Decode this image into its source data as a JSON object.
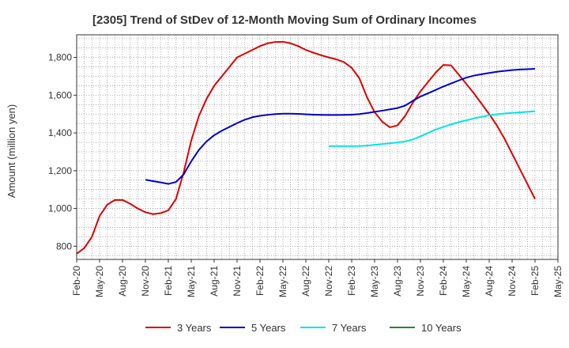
{
  "chart_data": {
    "type": "line",
    "title": "[2305]  Trend of StDev of 12-Month Moving Sum of Ordinary Incomes",
    "xlabel": "",
    "ylabel": "Amount (million yen)",
    "ylim": [
      730,
      1920
    ],
    "yticks": [
      800,
      1000,
      1200,
      1400,
      1600,
      1800
    ],
    "ytick_labels": [
      "800",
      "1,000",
      "1,200",
      "1,400",
      "1,600",
      "1,800"
    ],
    "xlim": [
      0,
      63
    ],
    "xtick_positions": [
      0,
      3,
      6,
      9,
      12,
      15,
      18,
      21,
      24,
      27,
      30,
      33,
      36,
      39,
      42,
      45,
      48,
      51,
      54,
      57,
      60,
      63
    ],
    "xtick_labels": [
      "Feb-20",
      "May-20",
      "Aug-20",
      "Nov-20",
      "Feb-21",
      "May-21",
      "Aug-21",
      "Nov-21",
      "Feb-22",
      "May-22",
      "Aug-22",
      "Nov-22",
      "Feb-23",
      "May-23",
      "Aug-23",
      "Nov-23",
      "Feb-24",
      "May-24",
      "Aug-24",
      "Nov-24",
      "Feb-25",
      "May-25"
    ],
    "grid": true,
    "legend_position": "bottom",
    "series": [
      {
        "name": "3 Years",
        "color": "#dd0000",
        "x": [
          0,
          1,
          2,
          3,
          4,
          5,
          6,
          7,
          8,
          9,
          10,
          11,
          12,
          13,
          14,
          15,
          16,
          17,
          18,
          19,
          20,
          21,
          22,
          23,
          24,
          25,
          26,
          27,
          28,
          29,
          30,
          31,
          32,
          33,
          34,
          35,
          36,
          37,
          38,
          39,
          40,
          41,
          42,
          43,
          44,
          45,
          46,
          47,
          48,
          49,
          50,
          51,
          52,
          53,
          54,
          55,
          56,
          57,
          58,
          59,
          60
        ],
        "values": [
          760,
          790,
          850,
          960,
          1020,
          1045,
          1045,
          1025,
          1000,
          980,
          970,
          975,
          990,
          1050,
          1190,
          1360,
          1490,
          1580,
          1650,
          1700,
          1750,
          1800,
          1820,
          1840,
          1860,
          1875,
          1882,
          1883,
          1875,
          1860,
          1840,
          1825,
          1812,
          1800,
          1790,
          1775,
          1745,
          1690,
          1590,
          1510,
          1460,
          1430,
          1440,
          1490,
          1560,
          1620,
          1670,
          1720,
          1760,
          1758,
          1710,
          1660,
          1610,
          1555,
          1500,
          1440,
          1370,
          1290,
          1210,
          1130,
          1050
        ]
      },
      {
        "name": "5 Years",
        "color": "#0000cc",
        "x": [
          9,
          10,
          11,
          12,
          13,
          14,
          15,
          16,
          17,
          18,
          19,
          20,
          21,
          22,
          23,
          24,
          25,
          26,
          27,
          28,
          29,
          30,
          31,
          32,
          33,
          34,
          35,
          36,
          37,
          38,
          39,
          40,
          41,
          42,
          43,
          44,
          45,
          46,
          47,
          48,
          49,
          50,
          51,
          52,
          53,
          54,
          55,
          56,
          57,
          58,
          59,
          60
        ],
        "values": [
          1152,
          1145,
          1138,
          1130,
          1140,
          1180,
          1250,
          1310,
          1355,
          1388,
          1412,
          1432,
          1452,
          1470,
          1483,
          1491,
          1496,
          1500,
          1502,
          1502,
          1501,
          1499,
          1497,
          1496,
          1495,
          1495,
          1496,
          1497,
          1500,
          1505,
          1512,
          1518,
          1525,
          1532,
          1545,
          1570,
          1593,
          1610,
          1628,
          1646,
          1662,
          1678,
          1693,
          1704,
          1711,
          1718,
          1724,
          1729,
          1733,
          1736,
          1738,
          1740
        ]
      },
      {
        "name": "7 Years",
        "color": "#00e5e5",
        "x": [
          33,
          34,
          35,
          36,
          37,
          38,
          39,
          40,
          41,
          42,
          43,
          44,
          45,
          46,
          47,
          48,
          49,
          50,
          51,
          52,
          53,
          54,
          55,
          56,
          57,
          58,
          59,
          60
        ],
        "values": [
          1330,
          1330,
          1330,
          1330,
          1331,
          1333,
          1337,
          1341,
          1345,
          1350,
          1355,
          1365,
          1382,
          1400,
          1418,
          1432,
          1445,
          1457,
          1467,
          1477,
          1486,
          1493,
          1499,
          1503,
          1506,
          1509,
          1512,
          1515
        ]
      },
      {
        "name": "10 Years",
        "color": "#228b22",
        "x": [],
        "values": []
      }
    ]
  }
}
